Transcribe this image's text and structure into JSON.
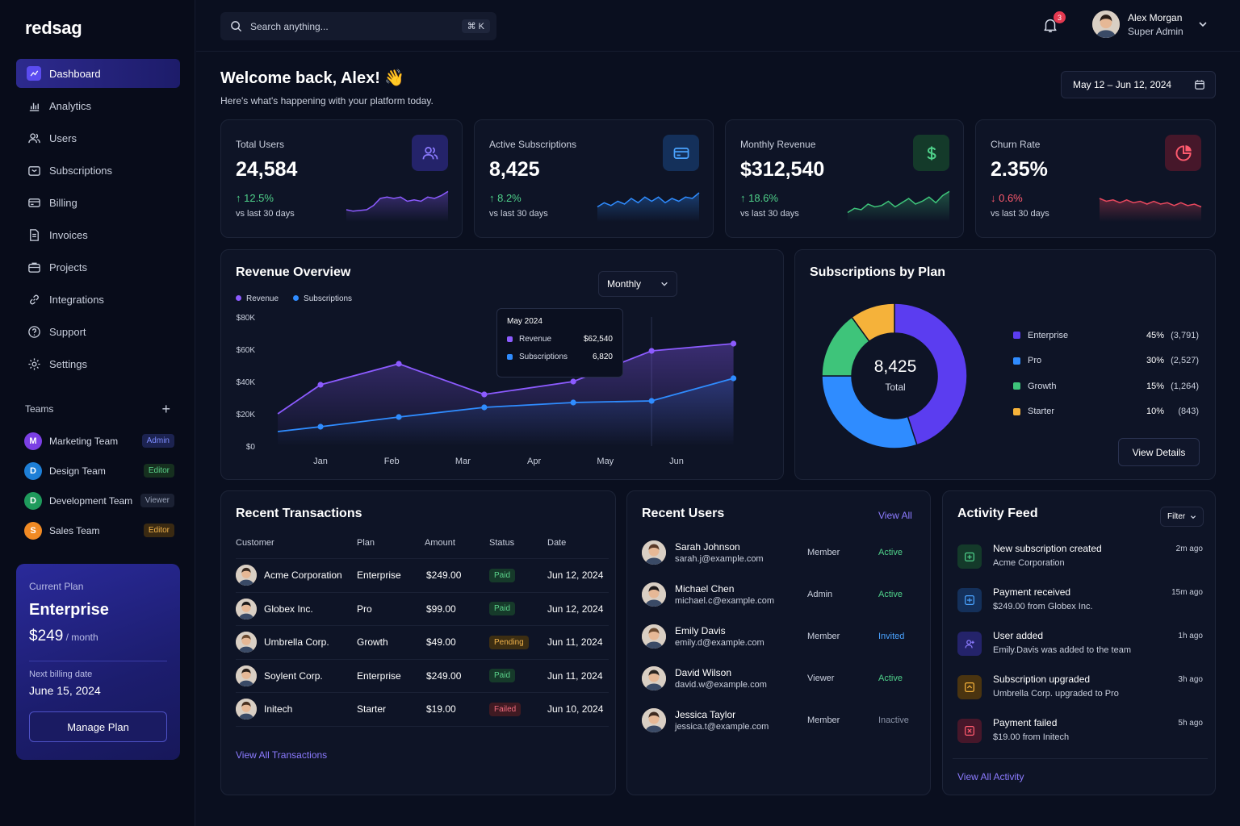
{
  "brand": "redsag",
  "nav": [
    {
      "label": "Dashboard",
      "icon": "dashboard-icon",
      "active": true
    },
    {
      "label": "Analytics",
      "icon": "bar-chart-icon"
    },
    {
      "label": "Users",
      "icon": "users-icon"
    },
    {
      "label": "Subscriptions",
      "icon": "subscriptions-icon"
    },
    {
      "label": "Billing",
      "icon": "credit-card-icon"
    },
    {
      "label": "Invoices",
      "icon": "invoice-icon"
    },
    {
      "label": "Projects",
      "icon": "briefcase-icon"
    },
    {
      "label": "Integrations",
      "icon": "link-icon"
    },
    {
      "label": "Support",
      "icon": "help-circle-icon"
    },
    {
      "label": "Settings",
      "icon": "gear-icon"
    }
  ],
  "teams": {
    "title": "Teams",
    "items": [
      {
        "initial": "M",
        "name": "Marketing Team",
        "role": "Admin",
        "color": "#7b3fe4",
        "role_bg": "#1c2350",
        "role_fg": "#7d8cff"
      },
      {
        "initial": "D",
        "name": "Design Team",
        "role": "Editor",
        "color": "#1e7fd6",
        "role_bg": "#16301f",
        "role_fg": "#5bd38b"
      },
      {
        "initial": "D",
        "name": "Development Team",
        "role": "Viewer",
        "color": "#1f9a5c",
        "role_bg": "#1b2133",
        "role_fg": "#9aa3b8"
      },
      {
        "initial": "S",
        "name": "Sales Team",
        "role": "Editor",
        "color": "#f08a24",
        "role_bg": "#3a2a12",
        "role_fg": "#f0b24a"
      }
    ]
  },
  "current_plan": {
    "label": "Current Plan",
    "name": "Enterprise",
    "price": "$249",
    "period": "/ month",
    "next_billing_label": "Next billing date",
    "next_billing_date": "June 15, 2024",
    "button": "Manage Plan"
  },
  "search": {
    "placeholder": "Search anything...",
    "shortcut": "⌘  K"
  },
  "notifications": {
    "count": "3"
  },
  "user": {
    "name": "Alex Morgan",
    "role": "Super Admin"
  },
  "welcome": {
    "title": "Welcome back, Alex! 👋",
    "subtitle": "Here's what's happening with your platform today."
  },
  "date_range": "May 12 – Jun 12, 2024",
  "stats": [
    {
      "title": "Total Users",
      "value": "24,584",
      "delta": "↑ 12.5%",
      "trend": "up",
      "sub": "vs last 30 days",
      "icon": "users-icon",
      "icon_bg": "#24236a",
      "icon_fg": "#8c7bff",
      "line": "#8c5bff",
      "spark": [
        8,
        7,
        7.5,
        8,
        11,
        16,
        17,
        16,
        17,
        14,
        15,
        14,
        17,
        16,
        18,
        21
      ]
    },
    {
      "title": "Active Subscriptions",
      "value": "8,425",
      "delta": "↑ 8.2%",
      "trend": "up",
      "sub": "vs last 30 days",
      "icon": "credit-card-icon",
      "icon_bg": "#14305a",
      "icon_fg": "#4aa3ff",
      "line": "#2f8cff",
      "spark": [
        10,
        13,
        11,
        14,
        12,
        16,
        13,
        17,
        14,
        17,
        13,
        16,
        14,
        17,
        16,
        20
      ]
    },
    {
      "title": "Monthly Revenue",
      "value": "$312,540",
      "delta": "↑ 18.6%",
      "trend": "up",
      "sub": "vs last 30 days",
      "icon": "dollar-icon",
      "icon_bg": "#143a2a",
      "icon_fg": "#4fd18a",
      "line": "#3ec47a",
      "spark": [
        6,
        9,
        8,
        12,
        10,
        11,
        14,
        10,
        13,
        16,
        12,
        14,
        17,
        13,
        18,
        21
      ]
    },
    {
      "title": "Churn Rate",
      "value": "2.35%",
      "delta": "↓ 0.6%",
      "trend": "down",
      "sub": "vs last 30 days",
      "icon": "pie-chart-icon",
      "icon_bg": "#46172a",
      "icon_fg": "#ff5a6e",
      "line": "#e8485e",
      "spark": [
        16,
        14,
        15,
        13,
        15,
        13,
        14,
        12,
        14,
        12,
        13,
        11,
        13,
        11,
        12,
        10
      ]
    }
  ],
  "revenue_overview": {
    "title": "Revenue Overview",
    "period_select": "Monthly",
    "tooltip": {
      "title": "May 2024",
      "rows": [
        {
          "label": "Revenue",
          "value": "$62,540"
        },
        {
          "label": "Subscriptions",
          "value": "6,820"
        }
      ]
    },
    "chart_data": {
      "type": "line",
      "x": [
        "Jan",
        "Feb",
        "Mar",
        "Apr",
        "May",
        "Jun"
      ],
      "ylim": [
        0,
        80000
      ],
      "yticks": [
        "$0",
        "$20K",
        "$40K",
        "$60K",
        "$80K"
      ],
      "legend_position": "top-left",
      "grid": false,
      "series": [
        {
          "name": "Revenue",
          "color": "#8c5bff",
          "points": [
            [
              -0.6,
              20000
            ],
            [
              0,
              38000
            ],
            [
              1.1,
              51000
            ],
            [
              2.3,
              32000
            ],
            [
              3.55,
              40000
            ],
            [
              4.65,
              59000
            ],
            [
              5.8,
              63500
            ]
          ]
        },
        {
          "name": "Subscriptions",
          "color": "#2f8cff",
          "points": [
            [
              -0.6,
              9000
            ],
            [
              0,
              12000
            ],
            [
              1.1,
              18000
            ],
            [
              2.3,
              24000
            ],
            [
              3.55,
              27000
            ],
            [
              4.65,
              28000
            ],
            [
              5.8,
              42000
            ]
          ]
        }
      ]
    }
  },
  "subscriptions_by_plan": {
    "title": "Subscriptions by Plan",
    "total": "8,425",
    "total_label": "Total",
    "button": "View Details",
    "chart_data": {
      "type": "pie",
      "slices": [
        {
          "name": "Enterprise",
          "pct": "45%",
          "count": "(3,791)",
          "value": 3791,
          "color": "#5b3df0"
        },
        {
          "name": "Pro",
          "pct": "30%",
          "count": "(2,527)",
          "value": 2527,
          "color": "#2f8cff"
        },
        {
          "name": "Growth",
          "pct": "15%",
          "count": "(1,264)",
          "value": 1264,
          "color": "#3ec47a"
        },
        {
          "name": "Starter",
          "pct": "10%",
          "count": "(843)",
          "value": 843,
          "color": "#f5b23a"
        }
      ]
    }
  },
  "transactions": {
    "title": "Recent Transactions",
    "columns": [
      "Customer",
      "Plan",
      "Amount",
      "Status",
      "Date"
    ],
    "rows": [
      {
        "customer": "Acme Corporation",
        "plan": "Enterprise",
        "amount": "$249.00",
        "status": "Paid",
        "date": "Jun 12, 2024"
      },
      {
        "customer": "Globex Inc.",
        "plan": "Pro",
        "amount": "$99.00",
        "status": "Paid",
        "date": "Jun 12, 2024"
      },
      {
        "customer": "Umbrella Corp.",
        "plan": "Growth",
        "amount": "$49.00",
        "status": "Pending",
        "date": "Jun 11, 2024"
      },
      {
        "customer": "Soylent Corp.",
        "plan": "Enterprise",
        "amount": "$249.00",
        "status": "Paid",
        "date": "Jun 11, 2024"
      },
      {
        "customer": "Initech",
        "plan": "Starter",
        "amount": "$19.00",
        "status": "Failed",
        "date": "Jun 10, 2024"
      }
    ],
    "link": "View All Transactions"
  },
  "recent_users": {
    "title": "Recent Users",
    "link": "View All",
    "rows": [
      {
        "name": "Sarah Johnson",
        "email": "sarah.j@example.com",
        "role": "Member",
        "status": "Active",
        "status_color": "#4fd18a",
        "hair": "#5a3a28"
      },
      {
        "name": "Michael Chen",
        "email": "michael.c@example.com",
        "role": "Admin",
        "status": "Active",
        "status_color": "#4fd18a",
        "hair": "#1e1a1a"
      },
      {
        "name": "Emily Davis",
        "email": "emily.d@example.com",
        "role": "Member",
        "status": "Invited",
        "status_color": "#4aa3ff",
        "hair": "#6b4a30"
      },
      {
        "name": "David Wilson",
        "email": "david.w@example.com",
        "role": "Viewer",
        "status": "Active",
        "status_color": "#4fd18a",
        "hair": "#2a2420"
      },
      {
        "name": "Jessica Taylor",
        "email": "jessica.t@example.com",
        "role": "Member",
        "status": "Inactive",
        "status_color": "#8b93a7",
        "hair": "#3e2a20"
      }
    ]
  },
  "activity": {
    "title": "Activity Feed",
    "filter": "Filter",
    "items": [
      {
        "title": "New subscription created",
        "sub": "Acme Corporation",
        "time": "2m ago",
        "icon": "subscription-created-icon",
        "bg": "#143a2a",
        "fg": "#4fd18a"
      },
      {
        "title": "Payment received",
        "sub": "$249.00 from Globex Inc.",
        "time": "15m ago",
        "icon": "payment-received-icon",
        "bg": "#14305a",
        "fg": "#4aa3ff"
      },
      {
        "title": "User added",
        "sub": "Emily.Davis was added to the team",
        "time": "1h ago",
        "icon": "user-added-icon",
        "bg": "#24236a",
        "fg": "#8c7bff"
      },
      {
        "title": "Subscription upgraded",
        "sub": "Umbrella Corp. upgraded to Pro",
        "time": "3h ago",
        "icon": "upgrade-icon",
        "bg": "#4a3410",
        "fg": "#f5b23a"
      },
      {
        "title": "Payment failed",
        "sub": "$19.00 from Initech",
        "time": "5h ago",
        "icon": "payment-failed-icon",
        "bg": "#46172a",
        "fg": "#ff5a6e"
      }
    ],
    "link": "View All Activity"
  }
}
